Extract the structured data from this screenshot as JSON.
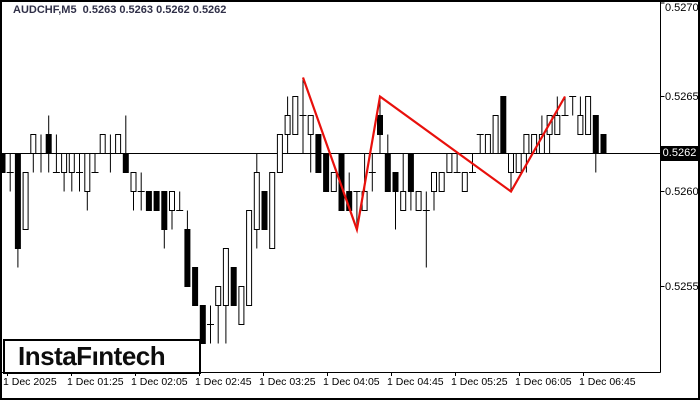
{
  "window": {
    "title": "AUDCHF,M5  0.5263 0.5263 0.5262 0.5262"
  },
  "logo": {
    "text": "InstaFıntech"
  },
  "price_axis": {
    "labels": [
      {
        "text": "0.5270",
        "price": 0.527
      },
      {
        "text": "0.5265",
        "price": 0.5265
      },
      {
        "text": "0.5260",
        "price": 0.526
      },
      {
        "text": "0.5255",
        "price": 0.5255
      }
    ],
    "current": {
      "text": "0.5262",
      "price": 0.5262
    }
  },
  "time_axis": {
    "labels": [
      "1 Dec 2025",
      "1 Dec 01:25",
      "1 Dec 02:05",
      "1 Dec 02:45",
      "1 Dec 03:25",
      "1 Dec 04:05",
      "1 Dec 04:45",
      "1 Dec 05:25",
      "1 Dec 06:05",
      "1 Dec 06:45"
    ]
  },
  "colors": {
    "background": "#ffffff",
    "axis": "#000000",
    "bull": "#ffffff",
    "bear": "#000000",
    "wick": "#000000",
    "zigzag": "#e8100c",
    "title_text": "#303048",
    "price_box_bg": "#000000",
    "price_box_text": "#ffffff"
  },
  "chart_data": {
    "type": "candlestick",
    "title": "AUDCHF,M5",
    "symbol": "AUDCHF",
    "timeframe_minutes": 5,
    "start_time": "1 Dec 00:40",
    "interval_minutes": 5,
    "current_bar": {
      "open": 0.5263,
      "high": 0.5263,
      "low": 0.5262,
      "close": 0.5262
    },
    "current_price": 0.5262,
    "y_axis": {
      "visible_min": 0.5251,
      "visible_max": 0.527,
      "tick_step": 0.0005
    },
    "candles_ohlc": [
      [
        0.5262,
        0.5262,
        0.5261,
        0.5261
      ],
      [
        0.5261,
        0.5262,
        0.526,
        0.5261
      ],
      [
        0.5262,
        0.5262,
        0.5256,
        0.5257
      ],
      [
        0.5258,
        0.5261,
        0.5258,
        0.5261
      ],
      [
        0.5262,
        0.5263,
        0.5261,
        0.5263
      ],
      [
        0.5262,
        0.5263,
        0.5261,
        0.5262
      ],
      [
        0.5263,
        0.5264,
        0.5261,
        0.5262
      ],
      [
        0.5261,
        0.5263,
        0.5261,
        0.5261
      ],
      [
        0.5261,
        0.5262,
        0.526,
        0.5262
      ],
      [
        0.5261,
        0.5262,
        0.526,
        0.5262
      ],
      [
        0.5261,
        0.5262,
        0.526,
        0.5261
      ],
      [
        0.526,
        0.5262,
        0.5259,
        0.5262
      ],
      [
        0.5261,
        0.5262,
        0.5261,
        0.5261
      ],
      [
        0.5262,
        0.5263,
        0.5262,
        0.5263
      ],
      [
        0.5262,
        0.5263,
        0.5261,
        0.5262
      ],
      [
        0.5262,
        0.5263,
        0.5262,
        0.5263
      ],
      [
        0.5262,
        0.5264,
        0.5261,
        0.5261
      ],
      [
        0.526,
        0.5261,
        0.5259,
        0.5261
      ],
      [
        0.526,
        0.5261,
        0.5259,
        0.526
      ],
      [
        0.526,
        0.526,
        0.5259,
        0.5259
      ],
      [
        0.526,
        0.526,
        0.5259,
        0.5259
      ],
      [
        0.526,
        0.526,
        0.5257,
        0.5258
      ],
      [
        0.5259,
        0.526,
        0.5258,
        0.526
      ],
      [
        0.5259,
        0.526,
        0.5259,
        0.5259
      ],
      [
        0.5258,
        0.5259,
        0.5255,
        0.5255
      ],
      [
        0.5256,
        0.5256,
        0.5254,
        0.5254
      ],
      [
        0.5254,
        0.5254,
        0.5252,
        0.5252
      ],
      [
        0.5253,
        0.5254,
        0.5252,
        0.5253
      ],
      [
        0.5254,
        0.5255,
        0.5252,
        0.5255
      ],
      [
        0.5254,
        0.5257,
        0.5252,
        0.5257
      ],
      [
        0.5256,
        0.5256,
        0.5254,
        0.5254
      ],
      [
        0.5253,
        0.5255,
        0.5253,
        0.5255
      ],
      [
        0.5254,
        0.5259,
        0.5254,
        0.5259
      ],
      [
        0.5258,
        0.5262,
        0.5257,
        0.5261
      ],
      [
        0.526,
        0.526,
        0.5258,
        0.5258
      ],
      [
        0.5257,
        0.5261,
        0.5257,
        0.5261
      ],
      [
        0.5261,
        0.5263,
        0.5261,
        0.5263
      ],
      [
        0.5263,
        0.5265,
        0.5262,
        0.5264
      ],
      [
        0.5263,
        0.5265,
        0.5263,
        0.5265
      ],
      [
        0.5264,
        0.5266,
        0.5262,
        0.5264
      ],
      [
        0.5263,
        0.5264,
        0.5261,
        0.5264
      ],
      [
        0.5263,
        0.5263,
        0.5261,
        0.5261
      ],
      [
        0.5262,
        0.5262,
        0.526,
        0.526
      ],
      [
        0.526,
        0.5261,
        0.526,
        0.5261
      ],
      [
        0.5262,
        0.5262,
        0.5259,
        0.5259
      ],
      [
        0.526,
        0.5261,
        0.5259,
        0.5259
      ],
      [
        0.526,
        0.526,
        0.5258,
        0.526
      ],
      [
        0.5259,
        0.5262,
        0.5259,
        0.526
      ],
      [
        0.5261,
        0.5262,
        0.526,
        0.5261
      ],
      [
        0.5264,
        0.5265,
        0.5262,
        0.5263
      ],
      [
        0.5262,
        0.5263,
        0.526,
        0.526
      ],
      [
        0.5261,
        0.5261,
        0.5258,
        0.526
      ],
      [
        0.5259,
        0.5262,
        0.5259,
        0.526
      ],
      [
        0.5262,
        0.5262,
        0.5259,
        0.526
      ],
      [
        0.5259,
        0.526,
        0.5259,
        0.526
      ],
      [
        0.5259,
        0.526,
        0.5256,
        0.5259
      ],
      [
        0.526,
        0.5261,
        0.5259,
        0.5261
      ],
      [
        0.526,
        0.5261,
        0.526,
        0.5261
      ],
      [
        0.5261,
        0.5262,
        0.5261,
        0.5262
      ],
      [
        0.5261,
        0.5262,
        0.5261,
        0.5261
      ],
      [
        0.526,
        0.5261,
        0.526,
        0.5261
      ],
      [
        0.5261,
        0.5262,
        0.5261,
        0.5261
      ],
      [
        0.5263,
        0.5263,
        0.5262,
        0.5263
      ],
      [
        0.5262,
        0.5263,
        0.5262,
        0.5263
      ],
      [
        0.5262,
        0.5264,
        0.5262,
        0.5264
      ],
      [
        0.5265,
        0.5265,
        0.5262,
        0.5262
      ],
      [
        0.5261,
        0.5262,
        0.526,
        0.5262
      ],
      [
        0.5261,
        0.5262,
        0.5261,
        0.5262
      ],
      [
        0.5262,
        0.5263,
        0.5261,
        0.5263
      ],
      [
        0.5262,
        0.5263,
        0.5262,
        0.5263
      ],
      [
        0.5262,
        0.5264,
        0.5262,
        0.5263
      ],
      [
        0.5263,
        0.5264,
        0.5262,
        0.5264
      ],
      [
        0.5263,
        0.5265,
        0.5263,
        0.5264
      ],
      [
        0.5264,
        0.5265,
        0.5264,
        0.5264
      ],
      [
        0.5265,
        0.5265,
        0.5264,
        0.5265
      ],
      [
        0.5263,
        0.5265,
        0.5263,
        0.5264
      ],
      [
        0.5263,
        0.5265,
        0.5263,
        0.5265
      ],
      [
        0.5264,
        0.5264,
        0.5261,
        0.5262
      ],
      [
        0.5263,
        0.5263,
        0.5262,
        0.5262
      ]
    ],
    "zigzag": {
      "indicator": "ZigZag",
      "anchors": [
        {
          "index": 39,
          "price": 0.5266
        },
        {
          "index": 46,
          "price": 0.5258
        },
        {
          "index": 49,
          "price": 0.5265
        },
        {
          "index": 66,
          "price": 0.526
        },
        {
          "index": 73,
          "price": 0.5265
        }
      ]
    }
  }
}
